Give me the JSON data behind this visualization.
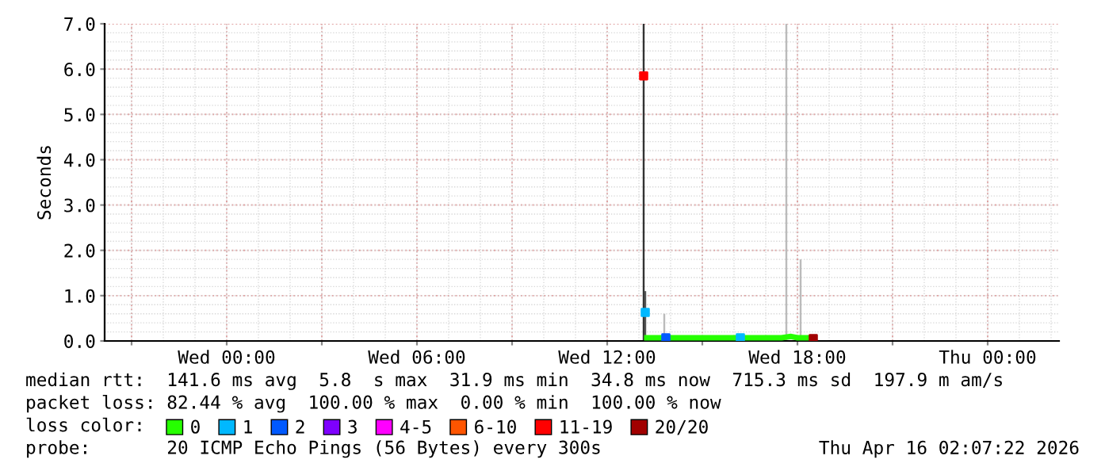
{
  "chart_data": {
    "type": "line",
    "ylabel": "Seconds",
    "legend_title": "loss color:",
    "legend": "bottom",
    "grid": true,
    "xlim": [
      "2026-04-14T20:09",
      "2026-04-16T02:15"
    ],
    "ylim": [
      0,
      7.0
    ],
    "yticks": [
      {
        "value": 0,
        "label": "0.0"
      },
      {
        "value": 1,
        "label": "1.0"
      },
      {
        "value": 2,
        "label": "2.0"
      },
      {
        "value": 3,
        "label": "3.0"
      },
      {
        "value": 4,
        "label": "4.0"
      },
      {
        "value": 5,
        "label": "5.0"
      },
      {
        "value": 6,
        "label": "6.0"
      },
      {
        "value": 7,
        "label": "7.0"
      }
    ],
    "xticks": [
      {
        "value": "2026-04-14T21:00",
        "label": null
      },
      {
        "value": "2026-04-15T00:00",
        "label": "Wed 00:00"
      },
      {
        "value": "2026-04-15T03:00",
        "label": null
      },
      {
        "value": "2026-04-15T06:00",
        "label": "Wed 06:00"
      },
      {
        "value": "2026-04-15T09:00",
        "label": null
      },
      {
        "value": "2026-04-15T12:00",
        "label": "Wed 12:00"
      },
      {
        "value": "2026-04-15T15:00",
        "label": null
      },
      {
        "value": "2026-04-15T18:00",
        "label": "Wed 18:00"
      },
      {
        "value": "2026-04-15T21:00",
        "label": null
      },
      {
        "value": "2026-04-16T00:00",
        "label": "Thu 00:00"
      }
    ],
    "series": [
      {
        "type": "bar",
        "color": "#333333",
        "x": [
          "2026-04-15T13:09"
        ],
        "values": [
          7.0
        ]
      },
      {
        "type": "bar",
        "color": "#555555",
        "x": [
          "2026-04-15T13:12"
        ],
        "values": [
          1.1
        ]
      },
      {
        "type": "bar",
        "color": "#bbbbbb",
        "x": [
          "2026-04-15T13:48",
          "2026-04-15T17:39",
          "2026-04-15T18:06"
        ],
        "values": [
          0.6,
          7.0,
          1.8
        ]
      },
      {
        "name": "0",
        "color": "#26ff00",
        "x": [
          "2026-04-15T13:15",
          "2026-04-15T13:36",
          "2026-04-15T14:00",
          "2026-04-15T14:30",
          "2026-04-15T15:00",
          "2026-04-15T15:30",
          "2026-04-15T16:00",
          "2026-04-15T16:30",
          "2026-04-15T17:00",
          "2026-04-15T17:30",
          "2026-04-15T17:48",
          "2026-04-15T18:00",
          "2026-04-15T18:27"
        ],
        "values": [
          0.07,
          0.07,
          0.07,
          0.07,
          0.07,
          0.07,
          0.07,
          0.07,
          0.07,
          0.07,
          0.1,
          0.07,
          0.07
        ]
      },
      {
        "name": "1",
        "type": "scatter",
        "color": "#00b8ff",
        "x": [
          "2026-04-15T13:12",
          "2026-04-15T16:12"
        ],
        "values": [
          0.63,
          0.07
        ]
      },
      {
        "name": "2",
        "type": "scatter",
        "color": "#0059ff",
        "x": [
          "2026-04-15T13:51"
        ],
        "values": [
          0.07
        ]
      },
      {
        "name": "3",
        "type": "scatter",
        "color": "#7e00ff"
      },
      {
        "name": "4-5",
        "type": "scatter",
        "color": "#ff00ff"
      },
      {
        "name": "6-10",
        "type": "scatter",
        "color": "#ff5500"
      },
      {
        "name": "11-19",
        "type": "scatter",
        "color": "#ff0000",
        "x": [
          "2026-04-15T13:09"
        ],
        "values": [
          5.85
        ]
      },
      {
        "name": "20/20",
        "type": "scatter",
        "color": "#a10000",
        "x": [
          "2026-04-15T18:30"
        ],
        "values": [
          0.05
        ]
      }
    ],
    "annotations": [
      "median rtt:  141.6 ms avg  5.8  s max  31.9 ms min  34.8 ms now  715.3 ms sd  197.9 m am/s",
      "packet loss: 82.44 % avg  100.00 % max  0.00 % min  100.00 % now",
      "probe:       20 ICMP Echo Pings (56 Bytes) every 300s",
      "Thu Apr 16 02:07:22 2026"
    ]
  }
}
